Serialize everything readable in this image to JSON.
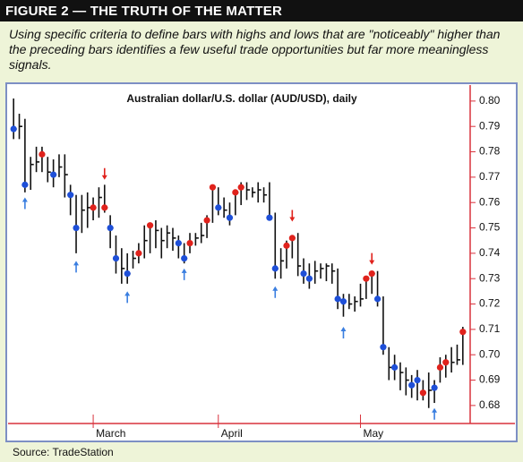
{
  "header": {
    "title": "FIGURE 2 — THE TRUTH OF THE MATTER"
  },
  "caption": "Using specific criteria to define bars with highs and lows that are \"noticeably\" higher than the preceding bars identifies a few useful trade opportunities but far more meaningless signals.",
  "source": "Source: TradeStation",
  "chart_data": {
    "type": "hlc",
    "title": "Australian dollar/U.S. dollar (AUD/USD), daily",
    "color": "#111111",
    "categories": [
      null,
      null,
      null,
      null,
      null,
      null,
      null,
      null,
      null,
      null,
      null,
      null,
      null,
      null,
      "March",
      null,
      null,
      null,
      null,
      null,
      null,
      null,
      null,
      null,
      null,
      null,
      null,
      null,
      null,
      null,
      null,
      null,
      null,
      null,
      null,
      null,
      "April",
      null,
      null,
      null,
      null,
      null,
      null,
      null,
      null,
      null,
      null,
      null,
      null,
      null,
      null,
      null,
      null,
      null,
      null,
      null,
      null,
      null,
      null,
      null,
      null,
      "May",
      null,
      null,
      null,
      null,
      null,
      null,
      null,
      null,
      null,
      null,
      null,
      null,
      null,
      null,
      null,
      null,
      null,
      null
    ],
    "high": [
      0.801,
      0.795,
      0.793,
      0.778,
      0.782,
      0.782,
      0.778,
      0.777,
      0.779,
      0.779,
      0.767,
      0.763,
      0.763,
      0.764,
      0.762,
      0.766,
      0.767,
      0.755,
      0.747,
      0.742,
      0.74,
      0.741,
      0.744,
      0.751,
      0.752,
      0.753,
      0.75,
      0.751,
      0.75,
      0.747,
      0.744,
      0.748,
      0.748,
      0.752,
      0.755,
      0.767,
      0.766,
      0.762,
      0.76,
      0.765,
      0.768,
      0.768,
      0.766,
      0.768,
      0.766,
      0.768,
      0.756,
      0.742,
      0.745,
      0.747,
      0.748,
      0.738,
      0.736,
      0.737,
      0.736,
      0.736,
      0.736,
      0.734,
      0.724,
      0.724,
      0.723,
      0.728,
      0.731,
      0.733,
      0.733,
      0.723,
      0.703,
      0.7,
      0.697,
      0.695,
      0.692,
      0.694,
      0.69,
      0.693,
      0.69,
      0.699,
      0.7,
      0.703,
      0.704,
      0.711
    ],
    "low": [
      0.785,
      0.785,
      0.764,
      0.765,
      0.772,
      0.772,
      0.768,
      0.766,
      0.77,
      0.762,
      0.755,
      0.74,
      0.748,
      0.75,
      0.753,
      0.754,
      0.756,
      0.742,
      0.732,
      0.728,
      0.728,
      0.734,
      0.736,
      0.738,
      0.74,
      0.742,
      0.738,
      0.742,
      0.741,
      0.738,
      0.736,
      0.74,
      0.743,
      0.744,
      0.746,
      0.752,
      0.755,
      0.754,
      0.751,
      0.755,
      0.759,
      0.761,
      0.762,
      0.76,
      0.76,
      0.753,
      0.73,
      0.73,
      0.734,
      0.738,
      0.731,
      0.728,
      0.726,
      0.728,
      0.73,
      0.729,
      0.728,
      0.718,
      0.715,
      0.718,
      0.717,
      0.719,
      0.722,
      0.724,
      0.719,
      0.7,
      0.69,
      0.69,
      0.686,
      0.684,
      0.683,
      0.682,
      0.682,
      0.679,
      0.681,
      0.689,
      0.691,
      0.693,
      0.696,
      0.696
    ],
    "close": [
      0.789,
      0.79,
      0.767,
      0.775,
      0.776,
      0.779,
      0.772,
      0.771,
      0.774,
      0.771,
      0.763,
      0.75,
      0.757,
      0.758,
      0.758,
      0.762,
      0.758,
      0.75,
      0.738,
      0.734,
      0.732,
      0.738,
      0.74,
      0.745,
      0.751,
      0.749,
      0.745,
      0.748,
      0.746,
      0.744,
      0.738,
      0.744,
      0.746,
      0.747,
      0.753,
      0.766,
      0.758,
      0.757,
      0.754,
      0.764,
      0.766,
      0.765,
      0.764,
      0.765,
      0.763,
      0.754,
      0.734,
      0.737,
      0.743,
      0.746,
      0.735,
      0.732,
      0.73,
      0.733,
      0.734,
      0.735,
      0.733,
      0.722,
      0.721,
      0.72,
      0.721,
      0.722,
      0.73,
      0.732,
      0.722,
      0.703,
      0.695,
      0.695,
      0.693,
      0.69,
      0.688,
      0.69,
      0.685,
      0.686,
      0.687,
      0.695,
      0.697,
      0.697,
      0.698,
      0.709
    ],
    "markers": [
      {
        "color": "#1e4fd8",
        "values": [
          0.789,
          null,
          0.767,
          null,
          null,
          null,
          null,
          0.771,
          null,
          null,
          0.763,
          0.75,
          null,
          null,
          null,
          null,
          null,
          0.75,
          0.738,
          null,
          0.732,
          null,
          null,
          null,
          null,
          null,
          null,
          null,
          null,
          0.744,
          0.738,
          null,
          null,
          null,
          null,
          null,
          0.758,
          null,
          0.754,
          null,
          null,
          null,
          null,
          null,
          null,
          0.754,
          0.734,
          null,
          null,
          null,
          null,
          0.732,
          0.73,
          null,
          null,
          null,
          null,
          0.722,
          0.721,
          null,
          null,
          null,
          null,
          null,
          0.722,
          0.703,
          null,
          0.695,
          null,
          null,
          0.688,
          0.69,
          null,
          null,
          0.687,
          null,
          null,
          null,
          null,
          null
        ]
      },
      {
        "color": "#e0221c",
        "values": [
          null,
          null,
          null,
          null,
          null,
          0.779,
          null,
          null,
          null,
          null,
          null,
          null,
          null,
          null,
          0.758,
          null,
          0.758,
          null,
          null,
          null,
          null,
          null,
          0.74,
          null,
          0.751,
          null,
          null,
          null,
          null,
          null,
          null,
          0.744,
          null,
          null,
          0.753,
          0.766,
          null,
          null,
          null,
          0.764,
          0.766,
          null,
          null,
          null,
          null,
          null,
          null,
          null,
          0.743,
          0.746,
          null,
          null,
          null,
          null,
          null,
          null,
          null,
          null,
          null,
          null,
          null,
          null,
          0.73,
          0.732,
          null,
          null,
          null,
          null,
          null,
          null,
          null,
          null,
          0.685,
          null,
          null,
          0.695,
          0.697,
          null,
          null,
          0.709
        ]
      }
    ],
    "up_arrows": {
      "color": "#3a7ee0",
      "values": [
        null,
        null,
        0.762,
        null,
        null,
        null,
        null,
        null,
        null,
        null,
        null,
        0.737,
        null,
        null,
        null,
        null,
        null,
        null,
        null,
        null,
        0.725,
        null,
        null,
        null,
        null,
        null,
        null,
        null,
        null,
        null,
        0.734,
        null,
        null,
        null,
        null,
        null,
        null,
        null,
        null,
        null,
        null,
        null,
        null,
        null,
        null,
        null,
        0.727,
        null,
        null,
        null,
        null,
        null,
        null,
        null,
        null,
        null,
        null,
        null,
        0.711,
        null,
        null,
        null,
        null,
        null,
        null,
        null,
        null,
        null,
        null,
        null,
        null,
        null,
        null,
        null,
        0.679,
        null,
        null,
        null,
        null,
        null
      ]
    },
    "down_arrows": {
      "color": "#e0221c",
      "values": [
        null,
        null,
        null,
        null,
        null,
        null,
        null,
        null,
        null,
        null,
        null,
        null,
        null,
        null,
        null,
        null,
        0.769,
        null,
        null,
        null,
        null,
        null,
        null,
        null,
        null,
        null,
        null,
        null,
        null,
        null,
        null,
        null,
        null,
        null,
        null,
        null,
        null,
        null,
        null,
        null,
        null,
        null,
        null,
        null,
        null,
        null,
        null,
        null,
        null,
        0.7525,
        null,
        null,
        null,
        null,
        null,
        null,
        null,
        null,
        null,
        null,
        null,
        null,
        null,
        0.7355,
        null,
        null,
        null,
        null,
        null,
        null,
        null,
        null,
        null,
        null,
        null,
        null,
        null,
        null,
        null,
        null
      ]
    },
    "ylim": [
      0.6729,
      0.8056
    ],
    "yticks": [
      0.68,
      0.69,
      {
        "value": 0.7,
        "label": "0.70"
      },
      0.71,
      0.72,
      0.73,
      0.74,
      0.75,
      0.76,
      0.77,
      0.78,
      0.79,
      {
        "value": 0.8,
        "label": "0.80"
      }
    ]
  }
}
